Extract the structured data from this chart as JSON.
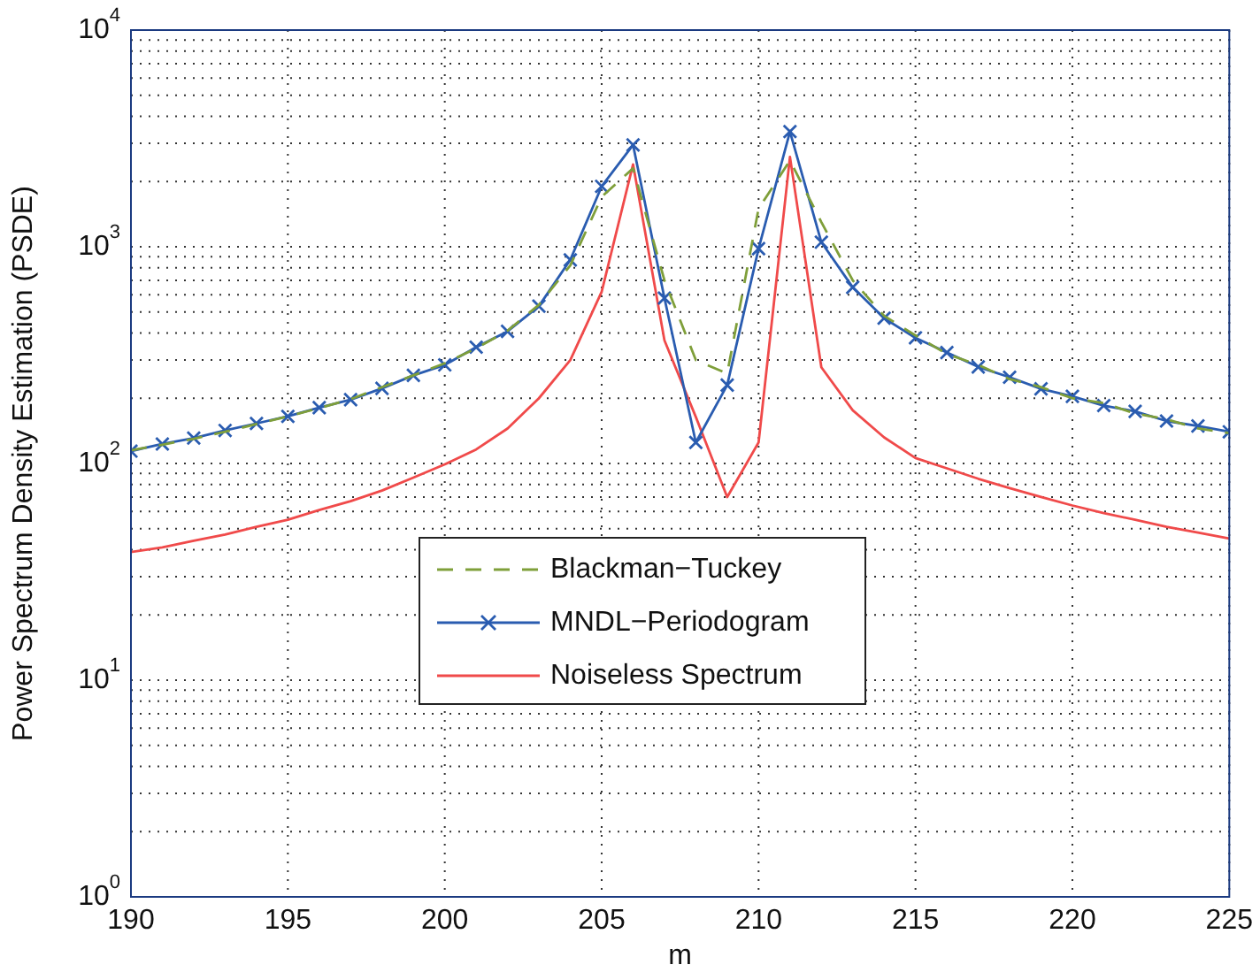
{
  "chart_data": {
    "type": "line",
    "xlabel": "m",
    "ylabel": "Power Spectrum Density Estimation (PSDE)",
    "x": [
      190,
      191,
      192,
      193,
      194,
      195,
      196,
      197,
      198,
      199,
      200,
      201,
      202,
      203,
      204,
      205,
      206,
      207,
      208,
      209,
      210,
      211,
      212,
      213,
      214,
      215,
      216,
      217,
      218,
      219,
      220,
      221,
      222,
      223,
      224,
      225
    ],
    "series": [
      {
        "name": "Blackman−Tuckey",
        "color": "#7f9f3a",
        "line_style": "dashed",
        "marker": "none",
        "values": [
          115,
          122,
          130,
          140,
          152,
          165,
          180,
          198,
          225,
          255,
          290,
          340,
          410,
          540,
          820,
          1700,
          2300,
          700,
          300,
          260,
          1500,
          2500,
          1300,
          700,
          480,
          390,
          320,
          285,
          245,
          225,
          200,
          190,
          170,
          160,
          145,
          138
        ]
      },
      {
        "name": "MNDL−Periodogram",
        "color": "#2a5cb0",
        "line_style": "solid",
        "marker": "cross",
        "values": [
          114,
          123,
          131,
          142,
          153,
          165,
          181,
          197,
          222,
          255,
          285,
          344,
          407,
          532,
          870,
          1900,
          2950,
          580,
          125,
          230,
          980,
          3400,
          1050,
          650,
          468,
          380,
          325,
          279,
          250,
          221,
          204,
          185,
          174,
          157,
          149,
          140
        ]
      },
      {
        "name": "Noiseless Spectrum",
        "color": "#f04a4a",
        "line_style": "solid",
        "marker": "none",
        "values": [
          39,
          41,
          44,
          47,
          51,
          55,
          61,
          67,
          75,
          86,
          99,
          116,
          145,
          200,
          300,
          620,
          2400,
          370,
          164,
          70,
          125,
          2600,
          278,
          176,
          132,
          106,
          95,
          85,
          77,
          70,
          64,
          59,
          55,
          51,
          48,
          45
        ]
      }
    ],
    "log": "y",
    "xlim": [
      190,
      225
    ],
    "xticks": [
      190,
      195,
      200,
      205,
      210,
      215,
      220,
      225
    ],
    "ylim": [
      1,
      10000
    ],
    "yticks": [
      {
        "value": 1,
        "label": "10$^{0}$"
      },
      {
        "value": 10,
        "label": "10$^{1}$"
      },
      {
        "value": 100,
        "label": "10$^{2}$"
      },
      {
        "value": 1000,
        "label": "10$^{3}$"
      },
      {
        "value": 10000,
        "label": "10$^{4}$"
      }
    ],
    "grid": true,
    "legend": "bottom"
  }
}
